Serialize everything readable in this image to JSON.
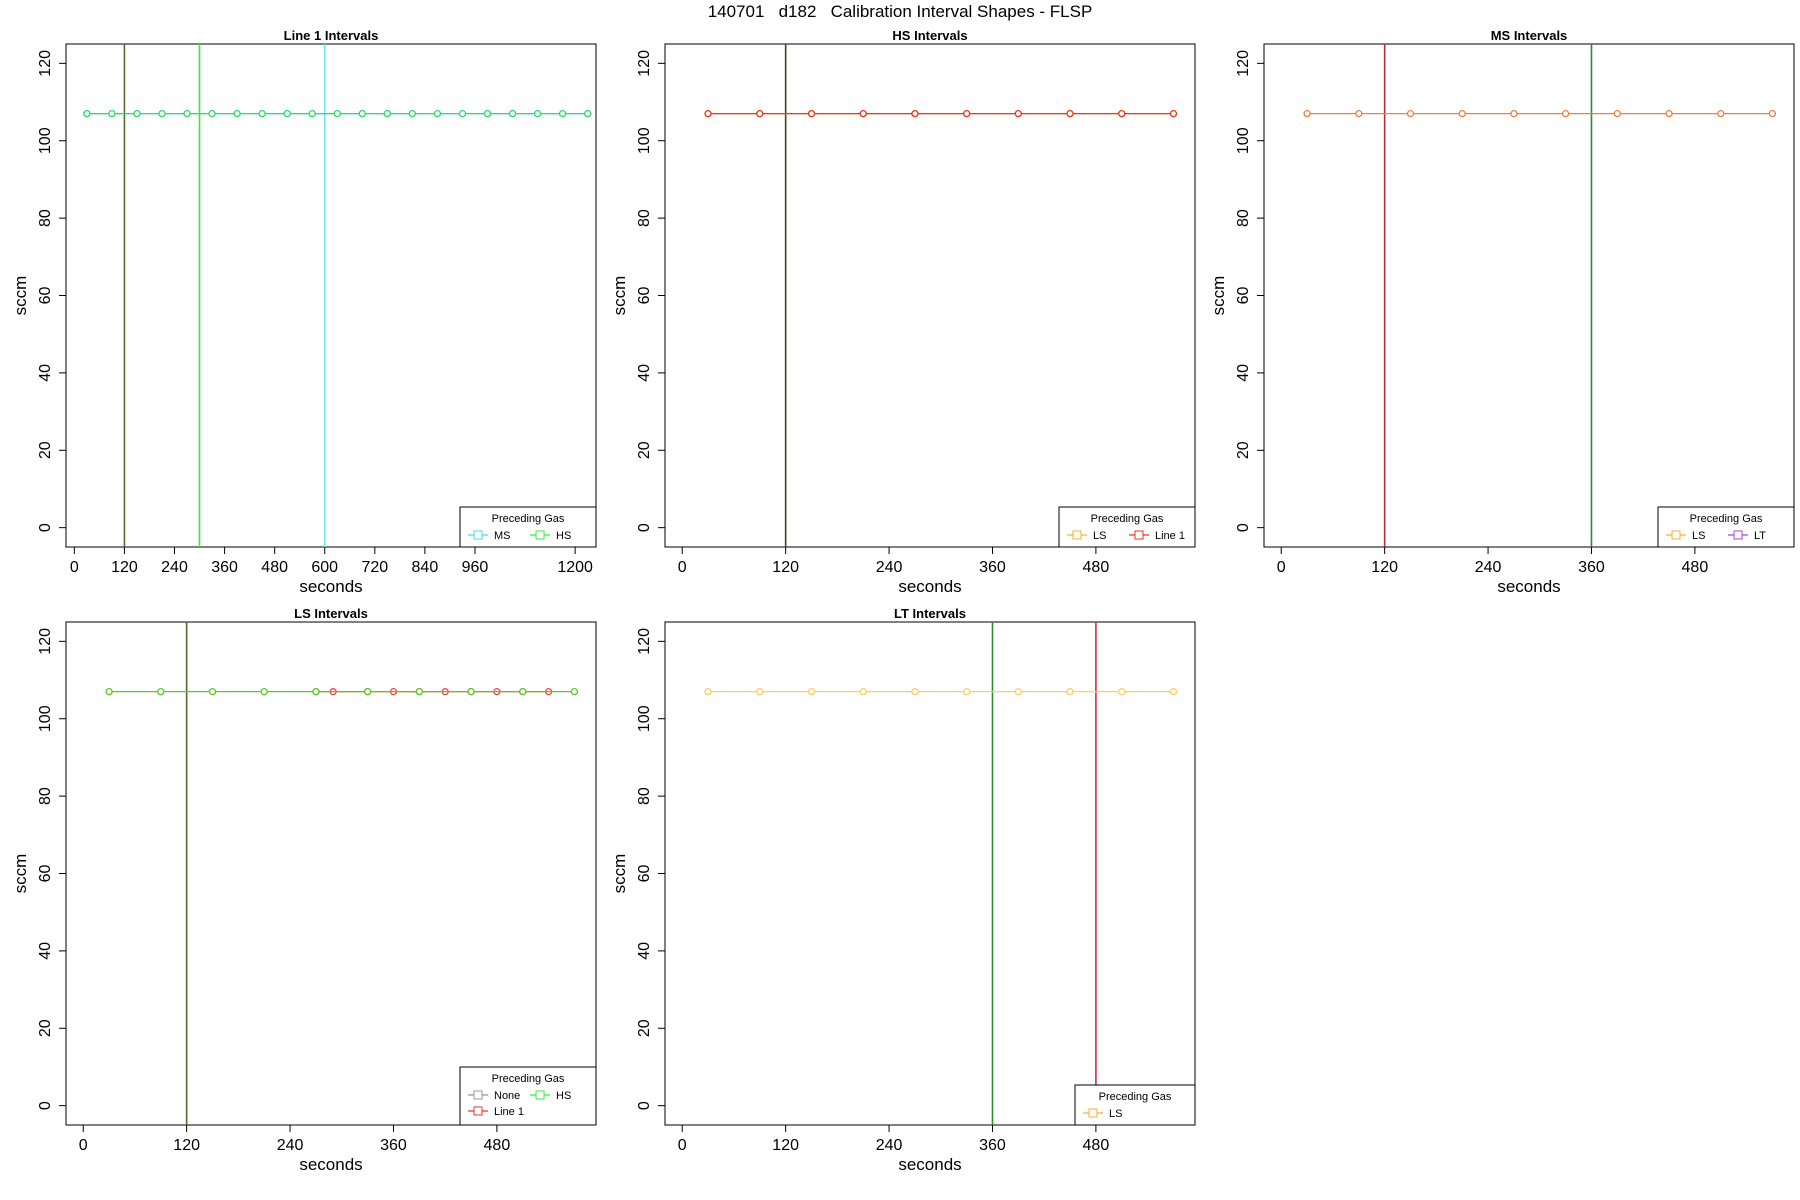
{
  "figure_title": "140701   d182   Calibration Interval Shapes - FLSP",
  "chart_data": [
    {
      "type": "line",
      "title": "Line 1 Intervals",
      "xlabel": "seconds",
      "ylabel": "sccm",
      "xlim": [
        -20,
        1250
      ],
      "ylim": [
        -5,
        125
      ],
      "xticks": [
        0,
        120,
        240,
        360,
        480,
        600,
        720,
        840,
        960,
        1200
      ],
      "yticks": [
        0,
        20,
        40,
        60,
        80,
        100,
        120
      ],
      "vlines": [
        {
          "x": 120,
          "color": "#556b2f"
        },
        {
          "x": 300,
          "color": "#33ee33"
        },
        {
          "x": 600,
          "color": "#66e8f0"
        }
      ],
      "series": [
        {
          "name": "MS",
          "color": "#44ddee",
          "y": 107,
          "x": [
            30,
            90,
            150,
            210,
            270,
            330,
            390,
            450,
            510,
            570,
            630,
            690,
            750,
            810,
            870,
            930,
            990,
            1050,
            1110,
            1170,
            1230
          ]
        },
        {
          "name": "HS",
          "color": "#33dd66",
          "y": 107,
          "x": [
            30,
            90,
            150,
            210,
            270,
            330,
            390,
            450,
            510,
            570,
            630,
            690,
            750,
            810,
            870,
            930,
            990,
            1050,
            1110,
            1170,
            1230
          ]
        }
      ],
      "legend": {
        "title": "Preceding Gas",
        "position": "bottom-right",
        "entries": [
          {
            "label": "MS",
            "color": "#44ddee"
          },
          {
            "label": "HS",
            "color": "#33ee33"
          }
        ]
      }
    },
    {
      "type": "line",
      "title": "HS Intervals",
      "xlabel": "seconds",
      "ylabel": "sccm",
      "xlim": [
        -20,
        595
      ],
      "ylim": [
        -5,
        125
      ],
      "xticks": [
        0,
        120,
        240,
        360,
        480
      ],
      "yticks": [
        0,
        20,
        40,
        60,
        80,
        100,
        120
      ],
      "vlines": [
        {
          "x": 120,
          "color": "#2f4f1f"
        }
      ],
      "series": [
        {
          "name": "LS",
          "color": "#ffaa33",
          "y": 107,
          "x": [
            30,
            90,
            150,
            210,
            270,
            330,
            390,
            450,
            510,
            570
          ]
        },
        {
          "name": "Line 1",
          "color": "#ee3322",
          "y": 107,
          "x": [
            30,
            90,
            150,
            210,
            270,
            330,
            390,
            450,
            510,
            570
          ]
        }
      ],
      "legend": {
        "title": "Preceding Gas",
        "position": "bottom-right",
        "entries": [
          {
            "label": "LS",
            "color": "#ffaa33"
          },
          {
            "label": "Line 1",
            "color": "#ee3322"
          }
        ]
      }
    },
    {
      "type": "line",
      "title": "MS Intervals",
      "xlabel": "seconds",
      "ylabel": "sccm",
      "xlim": [
        -20,
        595
      ],
      "ylim": [
        -5,
        125
      ],
      "xticks": [
        0,
        120,
        240,
        360,
        480
      ],
      "yticks": [
        0,
        20,
        40,
        60,
        80,
        100,
        120
      ],
      "vlines": [
        {
          "x": 120,
          "color": "#b03030"
        },
        {
          "x": 360,
          "color": "#2e8b2e"
        }
      ],
      "series": [
        {
          "name": "LS",
          "color": "#f08040",
          "y": 107,
          "x": [
            30,
            90,
            150,
            210,
            270,
            330,
            390,
            450,
            510,
            570
          ]
        }
      ],
      "legend": {
        "title": "Preceding Gas",
        "position": "bottom-right",
        "entries": [
          {
            "label": "LS",
            "color": "#ffaa33"
          },
          {
            "label": "LT",
            "color": "#aa44dd"
          }
        ]
      }
    },
    {
      "type": "line",
      "title": "LS Intervals",
      "xlabel": "seconds",
      "ylabel": "sccm",
      "xlim": [
        -20,
        595
      ],
      "ylim": [
        -5,
        125
      ],
      "xticks": [
        0,
        120,
        240,
        360,
        480
      ],
      "yticks": [
        0,
        20,
        40,
        60,
        80,
        100,
        120
      ],
      "vlines": [
        {
          "x": 120,
          "color": "#556b2f"
        }
      ],
      "series": [
        {
          "name": "Line 1",
          "color": "#ee4444",
          "y": 107,
          "x": [
            270,
            290,
            330,
            360,
            390,
            420,
            450,
            480,
            510,
            540
          ]
        },
        {
          "name": "HS",
          "color": "#55cc22",
          "y": 107,
          "x": [
            30,
            90,
            150,
            210,
            270,
            330,
            390,
            450,
            510,
            570
          ]
        }
      ],
      "legend": {
        "title": "Preceding Gas",
        "position": "bottom-right",
        "entries": [
          {
            "label": "None",
            "color": "#999999"
          },
          {
            "label": "HS",
            "color": "#33ee33"
          },
          {
            "label": "Line 1",
            "color": "#ee3333"
          }
        ]
      }
    },
    {
      "type": "line",
      "title": "LT Intervals",
      "xlabel": "seconds",
      "ylabel": "sccm",
      "xlim": [
        -20,
        595
      ],
      "ylim": [
        -5,
        125
      ],
      "xticks": [
        0,
        120,
        240,
        360,
        480
      ],
      "yticks": [
        0,
        20,
        40,
        60,
        80,
        100,
        120
      ],
      "vlines": [
        {
          "x": 360,
          "color": "#2e8b2e"
        },
        {
          "x": 480,
          "color": "#cc3344"
        }
      ],
      "series": [
        {
          "name": "LS",
          "color": "#ffcc66",
          "y": 107,
          "x": [
            30,
            90,
            150,
            210,
            270,
            330,
            390,
            450,
            510,
            570
          ]
        }
      ],
      "legend": {
        "title": "Preceding Gas",
        "position": "bottom-right",
        "entries": [
          {
            "label": "LS",
            "color": "#ffaa33"
          }
        ]
      }
    }
  ]
}
